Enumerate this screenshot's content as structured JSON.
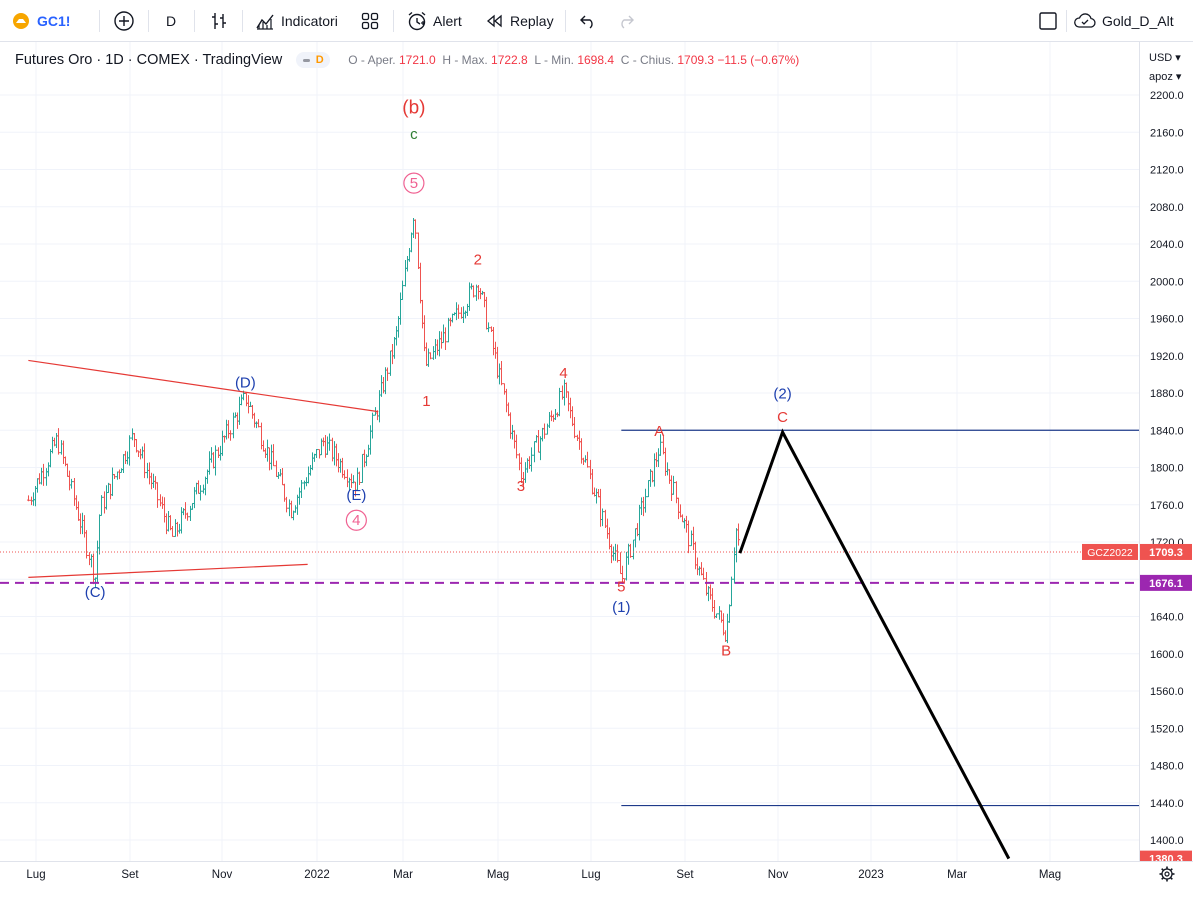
{
  "toolbar": {
    "symbol": "GC1!",
    "interval": "D",
    "indicators_label": "Indicatori",
    "alert_label": "Alert",
    "replay_label": "Replay",
    "layout_name": "Gold_D_Alt"
  },
  "legend": {
    "title": "Futures Oro · 1D · COMEX · TradingView",
    "badge": "D",
    "open_label": "O - Aper.",
    "open": "1721.0",
    "high_label": "H - Max.",
    "high": "1722.8",
    "low_label": "L - Min.",
    "low": "1698.4",
    "close_label": "C - Chius.",
    "close": "1709.3",
    "change": "−11.5 (−0.67%)"
  },
  "price_scale": {
    "currency": "USD",
    "currency_suffix": "▾",
    "mode": "apoz",
    "mode_suffix": "▾"
  },
  "chart_data": {
    "type": "candlestick",
    "symbol": "GC1!",
    "interval": "1D",
    "y_ticks": [
      2200,
      2160,
      2120,
      2080,
      2040,
      2000,
      1960,
      1920,
      1880,
      1840,
      1800,
      1760,
      1720,
      1680,
      1640,
      1600,
      1560,
      1520,
      1480,
      1440,
      1400
    ],
    "y_tick_labels": [
      "2200.0",
      "2160.0",
      "2120.0",
      "2080.0",
      "2040.0",
      "2000.0",
      "1960.0",
      "1920.0",
      "1880.0",
      "1840.0",
      "1800.0",
      "1760.0",
      "1720.0",
      "1680.0",
      "1640.0",
      "1600.0",
      "1560.0",
      "1520.0",
      "1480.0",
      "1440.0",
      "1400.0"
    ],
    "ylim": [
      1380,
      2250
    ],
    "x_tick_labels": [
      "Lug",
      "Set",
      "Nov",
      "2022",
      "Mar",
      "Mag",
      "Lug",
      "Set",
      "Nov",
      "2023",
      "Mar",
      "Mag"
    ],
    "x_tick_dates": [
      "2021-07-01",
      "2021-09-01",
      "2021-11-01",
      "2022-01-01",
      "2022-03-01",
      "2022-05-01",
      "2022-07-01",
      "2022-09-01",
      "2022-11-01",
      "2023-01-01",
      "2023-03-01",
      "2023-05-01"
    ],
    "price_path": [
      [
        "2021-06-28",
        1765
      ],
      [
        "2021-07-15",
        1830
      ],
      [
        "2021-08-09",
        1682
      ],
      [
        "2021-08-12",
        1755
      ],
      [
        "2021-09-03",
        1835
      ],
      [
        "2021-09-29",
        1725
      ],
      [
        "2021-10-20",
        1790
      ],
      [
        "2021-11-16",
        1875
      ],
      [
        "2021-12-15",
        1755
      ],
      [
        "2022-01-05",
        1828
      ],
      [
        "2022-01-28",
        1782
      ],
      [
        "2022-02-24",
        1940
      ],
      [
        "2022-03-08",
        2078
      ],
      [
        "2022-03-15",
        1908
      ],
      [
        "2022-04-18",
        2000
      ],
      [
        "2022-05-16",
        1792
      ],
      [
        "2022-06-13",
        1880
      ],
      [
        "2022-07-21",
        1680
      ],
      [
        "2022-08-15",
        1822
      ],
      [
        "2022-09-15",
        1665
      ],
      [
        "2022-09-28",
        1622
      ],
      [
        "2022-10-04",
        1735
      ],
      [
        "2022-10-07",
        1709
      ]
    ],
    "last_price": 1709.3,
    "last_price_label": "1709.3",
    "last_price_tag": "GCZ2022",
    "levels": [
      {
        "price": 1676.1,
        "label": "1676.1",
        "style": "dashed",
        "color": "#9c27b0"
      },
      {
        "price": 1840,
        "from": "2022-07-21",
        "to": "2023-06-30",
        "color": "#1e3a8a"
      },
      {
        "price": 1437,
        "from": "2022-07-21",
        "to": "2023-06-30",
        "color": "#1e3a8a"
      }
    ],
    "trendlines": [
      {
        "from": [
          "2021-06-28",
          1915
        ],
        "to": [
          "2022-02-12",
          1860
        ],
        "color": "#e53935"
      },
      {
        "from": [
          "2021-06-28",
          1682
        ],
        "to": [
          "2021-12-26",
          1696
        ],
        "color": "#e53935"
      }
    ],
    "projection": [
      [
        "2022-10-07",
        1708
      ],
      [
        "2022-11-04",
        1838
      ],
      [
        "2023-04-04",
        1380
      ]
    ],
    "projection_end_label": "1380.3",
    "wave_labels": [
      {
        "text": "(b)",
        "date": "2022-03-08",
        "price": 2180,
        "color": "#e53935"
      },
      {
        "text": "c",
        "date": "2022-03-08",
        "price": 2153,
        "color": "#2e7d32"
      },
      {
        "text": "5",
        "date": "2022-03-08",
        "price": 2100,
        "color": "#f06292",
        "circled": true
      },
      {
        "text": "(D)",
        "date": "2021-11-16",
        "price": 1886,
        "color": "#1e40af"
      },
      {
        "text": "(E)",
        "date": "2022-01-28",
        "price": 1765,
        "color": "#1e40af"
      },
      {
        "text": "4",
        "date": "2022-01-28",
        "price": 1738,
        "color": "#f06292",
        "circled": true
      },
      {
        "text": "(C)",
        "date": "2021-08-09",
        "price": 1661,
        "color": "#1e40af"
      },
      {
        "text": "1",
        "date": "2022-03-16",
        "price": 1866,
        "color": "#e53935"
      },
      {
        "text": "2",
        "date": "2022-04-18",
        "price": 2018,
        "color": "#e53935"
      },
      {
        "text": "3",
        "date": "2022-05-16",
        "price": 1775,
        "color": "#e53935"
      },
      {
        "text": "4",
        "date": "2022-06-13",
        "price": 1896,
        "color": "#e53935"
      },
      {
        "text": "5",
        "date": "2022-07-21",
        "price": 1667,
        "color": "#e53935"
      },
      {
        "text": "(1)",
        "date": "2022-07-21",
        "price": 1645,
        "color": "#1e40af"
      },
      {
        "text": "A",
        "date": "2022-08-15",
        "price": 1834,
        "color": "#e53935"
      },
      {
        "text": "B",
        "date": "2022-09-28",
        "price": 1598,
        "color": "#e53935"
      },
      {
        "text": "(2)",
        "date": "2022-11-04",
        "price": 1874,
        "color": "#1e40af"
      },
      {
        "text": "C",
        "date": "2022-11-04",
        "price": 1849,
        "color": "#e53935"
      }
    ]
  }
}
